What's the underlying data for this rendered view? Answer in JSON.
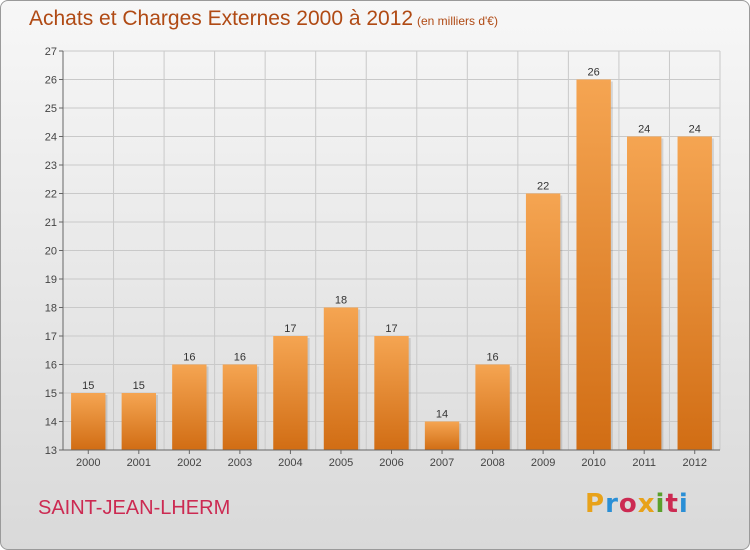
{
  "header": {
    "title": "Achats et Charges Externes 2000 à 2012",
    "subtitle": "(en milliers d'€)"
  },
  "footer": {
    "place": "SAINT-JEAN-LHERM",
    "logo": {
      "letters": [
        "P",
        "r",
        "o",
        "x",
        "i",
        "t",
        "i"
      ],
      "colors": [
        "#e8a21a",
        "#2a8fd6",
        "#cc2a52",
        "#e8a21a",
        "#5aa02c",
        "#cc2a52",
        "#2a8fd6"
      ]
    }
  },
  "chart_data": {
    "type": "bar",
    "title": "Achats et Charges Externes 2000 à 2012",
    "subtitle": "(en milliers d'€)",
    "categories": [
      "2000",
      "2001",
      "2002",
      "2003",
      "2004",
      "2005",
      "2006",
      "2007",
      "2008",
      "2009",
      "2010",
      "2011",
      "2012"
    ],
    "values": [
      15,
      15,
      16,
      16,
      17,
      18,
      17,
      14,
      16,
      22,
      26,
      24,
      24
    ],
    "ylim": [
      13,
      27
    ],
    "yticks": [
      13,
      14,
      15,
      16,
      17,
      18,
      19,
      20,
      21,
      22,
      23,
      24,
      25,
      26,
      27
    ],
    "grid": true,
    "legend": "none",
    "colors": {
      "bar_top": "#f5a552",
      "bar_bottom": "#d16d14",
      "grid": "#c9c9c9"
    }
  }
}
